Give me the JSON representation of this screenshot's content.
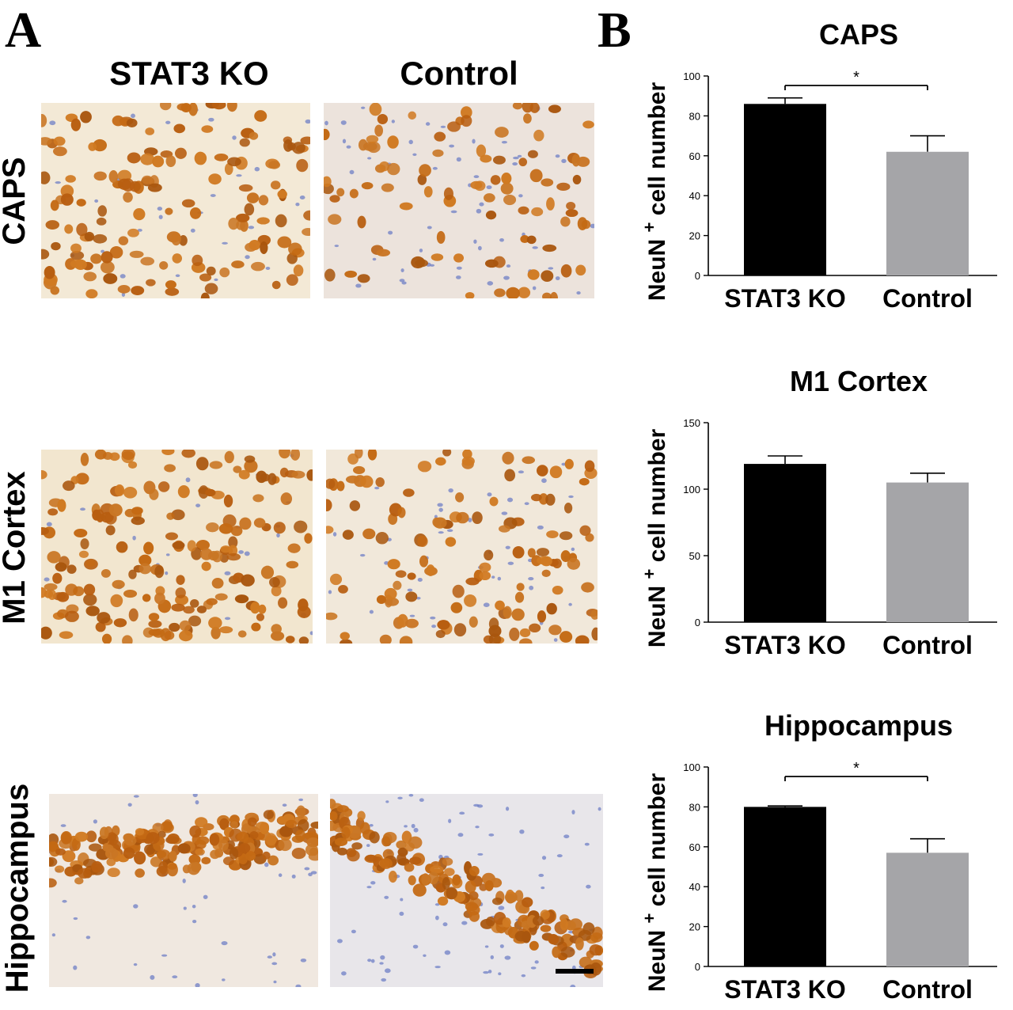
{
  "panels": {
    "a": "A",
    "b": "B"
  },
  "columns": [
    "STAT3 KO",
    "Control"
  ],
  "rows": [
    "CAPS",
    "M1 Cortex",
    "Hippocampus"
  ],
  "chart_data": [
    {
      "type": "bar",
      "title": "CAPS",
      "ylabel": "NeuN + cell number",
      "categories": [
        "STAT3 KO",
        "Control"
      ],
      "values": [
        86,
        62
      ],
      "errors": [
        3,
        8
      ],
      "colors": [
        "#000000",
        "#a5a5a8"
      ],
      "ylim": [
        0,
        100
      ],
      "yticks": [
        0,
        20,
        40,
        60,
        80,
        100
      ],
      "significance": "*"
    },
    {
      "type": "bar",
      "title": "M1 Cortex",
      "ylabel": "NeuN + cell number",
      "categories": [
        "STAT3 KO",
        "Control"
      ],
      "values": [
        119,
        105
      ],
      "errors": [
        6,
        7
      ],
      "colors": [
        "#000000",
        "#a5a5a8"
      ],
      "ylim": [
        0,
        150
      ],
      "yticks": [
        0,
        50,
        100,
        150
      ],
      "significance": ""
    },
    {
      "type": "bar",
      "title": "Hippocampus",
      "ylabel": "NeuN + cell number",
      "categories": [
        "STAT3 KO",
        "Control"
      ],
      "values": [
        80,
        57
      ],
      "errors": [
        0.5,
        7
      ],
      "colors": [
        "#000000",
        "#a5a5a8"
      ],
      "ylim": [
        0,
        100
      ],
      "yticks": [
        0,
        20,
        40,
        60,
        80,
        100
      ],
      "significance": "*"
    }
  ]
}
